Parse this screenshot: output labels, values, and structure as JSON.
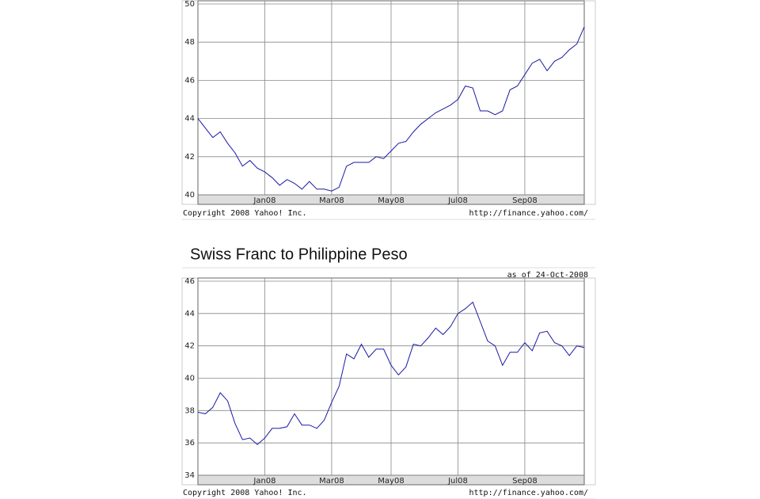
{
  "chart_data": [
    {
      "type": "line",
      "categories": [
        null,
        null,
        null,
        null,
        null,
        null,
        null,
        null,
        null,
        "Jan08",
        null,
        null,
        null,
        null,
        null,
        null,
        null,
        null,
        "Mar08",
        null,
        null,
        null,
        null,
        null,
        null,
        null,
        "May08",
        null,
        null,
        null,
        null,
        null,
        null,
        null,
        null,
        "Jul08",
        null,
        null,
        null,
        null,
        null,
        null,
        null,
        null,
        "Sep08",
        null,
        null,
        null,
        null,
        null,
        null,
        null,
        null
      ],
      "values": [
        44.0,
        43.5,
        43.0,
        43.3,
        42.7,
        42.2,
        41.5,
        41.8,
        41.4,
        41.2,
        40.9,
        40.5,
        40.8,
        40.6,
        40.3,
        40.7,
        40.3,
        40.3,
        40.2,
        40.4,
        41.5,
        41.7,
        41.7,
        41.7,
        42.0,
        41.9,
        42.3,
        42.7,
        42.8,
        43.3,
        43.7,
        44.0,
        44.3,
        44.5,
        44.7,
        45.0,
        45.7,
        45.6,
        44.4,
        44.4,
        44.2,
        44.4,
        45.5,
        45.7,
        46.3,
        46.9,
        47.1,
        46.5,
        47.0,
        47.2,
        47.6,
        47.9,
        48.8
      ],
      "color": "#1a1aa6",
      "ylim": [
        40,
        50
      ],
      "yticks": [
        40,
        42,
        44,
        46,
        48,
        50
      ],
      "grid": true,
      "source": "Copyright 2008 Yahoo! Inc.",
      "url": "http://finance.yahoo.com/"
    },
    {
      "type": "line",
      "title": "Swiss Franc to Philippine Peso",
      "subtitle": "as of 24-Oct-2008",
      "categories": [
        null,
        null,
        null,
        null,
        null,
        null,
        null,
        null,
        null,
        "Jan08",
        null,
        null,
        null,
        null,
        null,
        null,
        null,
        null,
        "Mar08",
        null,
        null,
        null,
        null,
        null,
        null,
        null,
        "May08",
        null,
        null,
        null,
        null,
        null,
        null,
        null,
        null,
        "Jul08",
        null,
        null,
        null,
        null,
        null,
        null,
        null,
        null,
        "Sep08",
        null,
        null,
        null,
        null,
        null,
        null,
        null,
        null
      ],
      "values": [
        37.9,
        37.8,
        38.2,
        39.1,
        38.6,
        37.2,
        36.2,
        36.3,
        35.9,
        36.3,
        36.9,
        36.9,
        37.0,
        37.8,
        37.1,
        37.1,
        36.9,
        37.4,
        38.5,
        39.5,
        41.5,
        41.2,
        42.1,
        41.3,
        41.8,
        41.8,
        40.8,
        40.2,
        40.7,
        42.1,
        42.0,
        42.5,
        43.1,
        42.7,
        43.2,
        44.0,
        44.3,
        44.7,
        43.5,
        42.3,
        42.0,
        40.8,
        41.6,
        41.6,
        42.2,
        41.7,
        42.8,
        42.9,
        42.2,
        42.0,
        41.4,
        42.0,
        41.9
      ],
      "color": "#1a1aa6",
      "ylim": [
        34,
        46
      ],
      "yticks": [
        34,
        36,
        38,
        40,
        42,
        44,
        46
      ],
      "grid": true,
      "source": "Copyright 2008 Yahoo! Inc.",
      "url": "http://finance.yahoo.com/"
    }
  ]
}
